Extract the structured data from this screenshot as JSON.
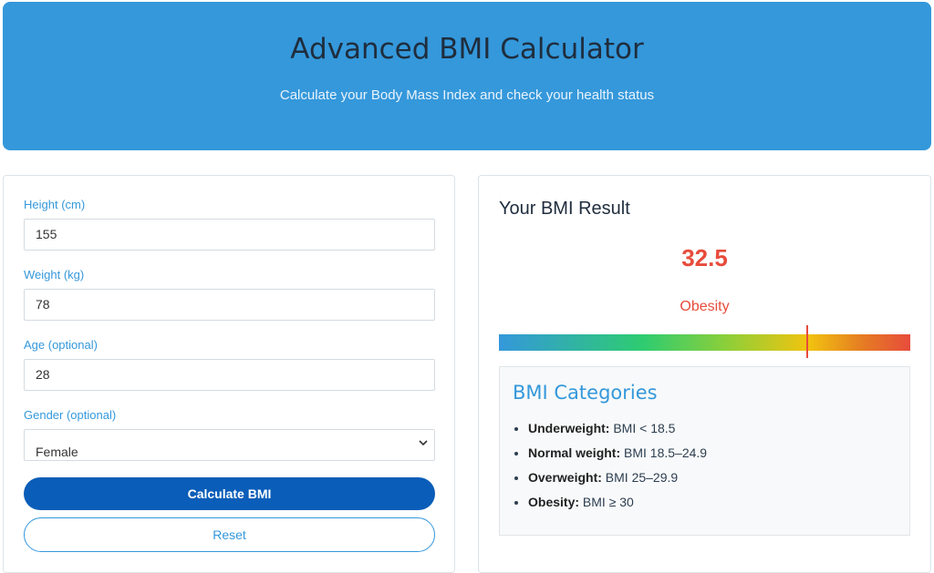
{
  "header": {
    "title": "Advanced BMI Calculator",
    "subtitle": "Calculate your Body Mass Index and check your health status"
  },
  "form": {
    "height": {
      "label": "Height (cm)",
      "value": "155"
    },
    "weight": {
      "label": "Weight (kg)",
      "value": "78"
    },
    "age": {
      "label": "Age (optional)",
      "value": "28"
    },
    "gender": {
      "label": "Gender (optional)",
      "selected": "Female"
    },
    "calculate_label": "Calculate BMI",
    "reset_label": "Reset"
  },
  "result": {
    "title": "Your BMI Result",
    "value": "32.5",
    "status": "Obesity",
    "gauge_position": 0.75,
    "colors": {
      "accent": "#3498db",
      "result": "#e74c3c",
      "primary_button": "#0a5db8"
    }
  },
  "categories": {
    "title": "BMI Categories",
    "items": [
      {
        "name": "Underweight:",
        "range": "BMI < 18.5"
      },
      {
        "name": "Normal weight:",
        "range": "BMI 18.5–24.9"
      },
      {
        "name": "Overweight:",
        "range": "BMI 25–29.9"
      },
      {
        "name": "Obesity:",
        "range": "BMI ≥ 30"
      }
    ]
  }
}
